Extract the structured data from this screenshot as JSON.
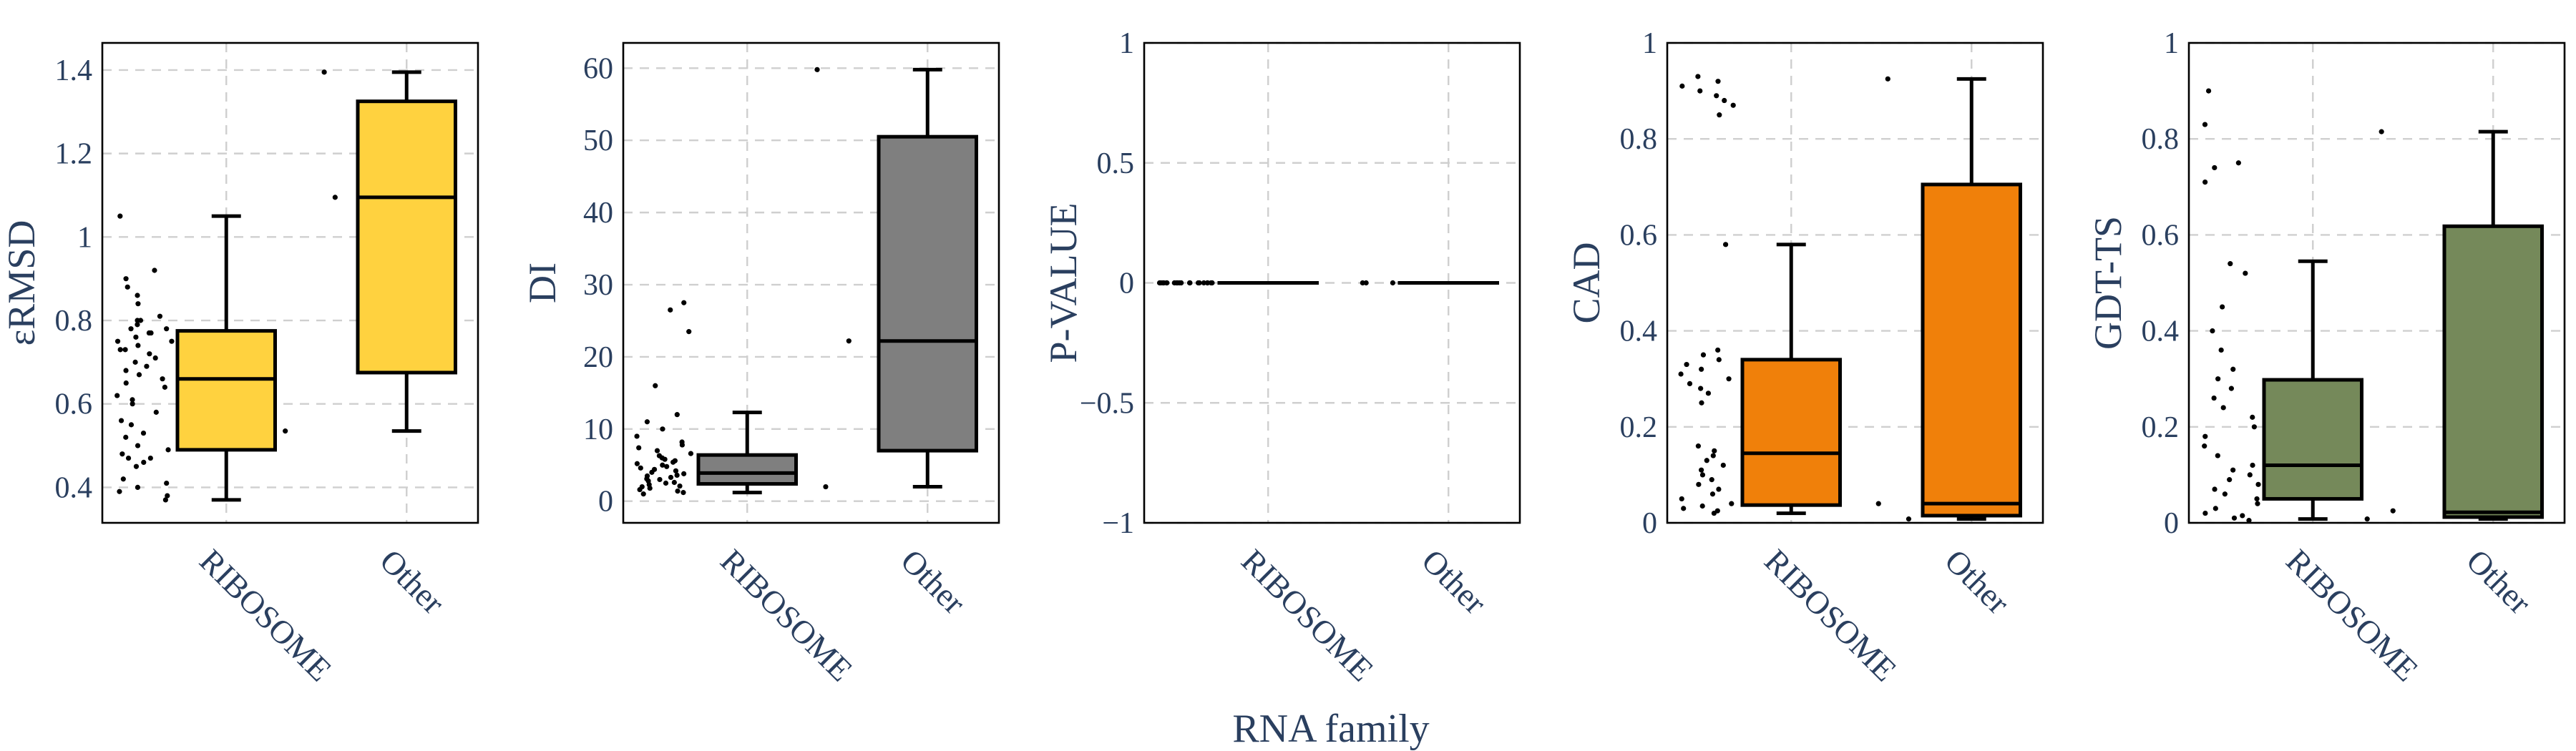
{
  "x_title": "RNA family",
  "chart_data": [
    {
      "type": "box",
      "ylabel": "εRMSD",
      "categories": [
        "RIBOSOME",
        "Other"
      ],
      "ylim": [
        0.315,
        1.465
      ],
      "yticks": [
        0.4,
        0.6,
        0.8,
        1,
        1.2,
        1.4
      ],
      "tick_labels": [
        "0.4",
        "0.6",
        "0.8",
        "1",
        "1.2",
        "1.4"
      ],
      "color": "#ffd23f",
      "grid": true,
      "boxes": [
        {
          "category": "RIBOSOME",
          "min": 0.37,
          "q1": 0.49,
          "median": 0.66,
          "q3": 0.775,
          "max": 1.05
        },
        {
          "category": "Other",
          "min": 0.535,
          "q1": 0.675,
          "median": 1.095,
          "q3": 1.325,
          "max": 1.395
        }
      ],
      "points": [
        [
          0.37,
          0.38,
          0.39,
          0.4,
          0.41,
          0.42,
          0.45,
          0.46,
          0.47,
          0.47,
          0.48,
          0.49,
          0.5,
          0.52,
          0.53,
          0.55,
          0.56,
          0.58,
          0.6,
          0.61,
          0.62,
          0.64,
          0.65,
          0.66,
          0.67,
          0.68,
          0.69,
          0.7,
          0.71,
          0.72,
          0.73,
          0.73,
          0.74,
          0.75,
          0.75,
          0.76,
          0.77,
          0.77,
          0.78,
          0.78,
          0.79,
          0.8,
          0.8,
          0.81,
          0.84,
          0.86,
          0.88,
          0.9,
          0.92,
          1.05
        ],
        [
          0.535,
          1.095,
          1.395
        ]
      ]
    },
    {
      "type": "box",
      "ylabel": "DI",
      "categories": [
        "RIBOSOME",
        "Other"
      ],
      "ylim": [
        -3,
        63.5
      ],
      "yticks": [
        0,
        10,
        20,
        30,
        40,
        50,
        60
      ],
      "tick_labels": [
        "0",
        "10",
        "20",
        "30",
        "40",
        "50",
        "60"
      ],
      "color": "#7f7f7f",
      "grid": true,
      "boxes": [
        {
          "category": "RIBOSOME",
          "min": 1.2,
          "q1": 2.4,
          "median": 3.9,
          "q3": 6.4,
          "max": 12.3
        },
        {
          "category": "Other",
          "min": 2.0,
          "q1": 7.0,
          "median": 22.2,
          "q3": 50.5,
          "max": 59.8
        }
      ],
      "points": [
        [
          1.0,
          1.2,
          1.4,
          1.6,
          1.8,
          2.0,
          2.1,
          2.3,
          2.5,
          2.6,
          2.8,
          3.0,
          3.1,
          3.3,
          3.5,
          3.6,
          3.8,
          4.0,
          4.2,
          4.4,
          4.6,
          4.8,
          5.0,
          5.2,
          5.4,
          5.6,
          5.8,
          6.0,
          6.3,
          6.6,
          7.0,
          7.4,
          7.8,
          8.2,
          9.0,
          10.0,
          11.0,
          12.0,
          16.0,
          23.5,
          26.5,
          27.5
        ],
        [
          2.0,
          22.2,
          59.8
        ]
      ]
    },
    {
      "type": "box",
      "ylabel": "P-VALUE",
      "categories": [
        "RIBOSOME",
        "Other"
      ],
      "ylim": [
        -1,
        1
      ],
      "yticks": [
        -1,
        -0.5,
        0,
        0.5,
        1
      ],
      "tick_labels": [
        "−1",
        "−0.5",
        "0",
        "0.5",
        "1"
      ],
      "color": "#1f77b4",
      "grid": true,
      "boxes": [
        {
          "category": "RIBOSOME",
          "min": 0,
          "q1": 0,
          "median": 0,
          "q3": 0,
          "max": 0
        },
        {
          "category": "Other",
          "min": 0,
          "q1": 0,
          "median": 0,
          "q3": 0,
          "max": 0
        }
      ],
      "points": [
        [
          0,
          0,
          0,
          0,
          0,
          0,
          0,
          0,
          0,
          0,
          0,
          0,
          0,
          0,
          0,
          0,
          0,
          0,
          0,
          0
        ],
        [
          0,
          0,
          0
        ]
      ]
    },
    {
      "type": "box",
      "ylabel": "CAD",
      "categories": [
        "RIBOSOME",
        "Other"
      ],
      "ylim": [
        0,
        1
      ],
      "yticks": [
        0,
        0.2,
        0.4,
        0.6,
        0.8,
        1
      ],
      "tick_labels": [
        "0",
        "0.2",
        "0.4",
        "0.6",
        "0.8",
        "1"
      ],
      "color": "#f0800a",
      "grid": true,
      "boxes": [
        {
          "category": "RIBOSOME",
          "min": 0.02,
          "q1": 0.037,
          "median": 0.145,
          "q3": 0.34,
          "max": 0.58
        },
        {
          "category": "Other",
          "min": 0.008,
          "q1": 0.015,
          "median": 0.04,
          "q3": 0.705,
          "max": 0.925
        }
      ],
      "points": [
        [
          0.02,
          0.025,
          0.03,
          0.035,
          0.04,
          0.05,
          0.06,
          0.07,
          0.08,
          0.09,
          0.1,
          0.11,
          0.12,
          0.13,
          0.14,
          0.15,
          0.16,
          0.25,
          0.27,
          0.28,
          0.29,
          0.3,
          0.31,
          0.32,
          0.33,
          0.34,
          0.35,
          0.36,
          0.58,
          0.85,
          0.87,
          0.88,
          0.89,
          0.9,
          0.91,
          0.92,
          0.93
        ],
        [
          0.008,
          0.04,
          0.925
        ]
      ]
    },
    {
      "type": "box",
      "ylabel": "GDT-TS",
      "categories": [
        "RIBOSOME",
        "Other"
      ],
      "ylim": [
        0,
        1
      ],
      "yticks": [
        0,
        0.2,
        0.4,
        0.6,
        0.8,
        1
      ],
      "tick_labels": [
        "0",
        "0.2",
        "0.4",
        "0.6",
        "0.8",
        "1"
      ],
      "color": "#75895a",
      "grid": true,
      "boxes": [
        {
          "category": "RIBOSOME",
          "min": 0.008,
          "q1": 0.05,
          "median": 0.12,
          "q3": 0.298,
          "max": 0.545
        },
        {
          "category": "Other",
          "min": 0.008,
          "q1": 0.012,
          "median": 0.022,
          "q3": 0.618,
          "max": 0.815
        }
      ],
      "points": [
        [
          0.005,
          0.01,
          0.015,
          0.02,
          0.03,
          0.04,
          0.05,
          0.06,
          0.07,
          0.08,
          0.09,
          0.1,
          0.11,
          0.12,
          0.14,
          0.16,
          0.18,
          0.2,
          0.22,
          0.24,
          0.26,
          0.28,
          0.3,
          0.32,
          0.36,
          0.4,
          0.45,
          0.52,
          0.54,
          0.71,
          0.74,
          0.75,
          0.83,
          0.9
        ],
        [
          0.008,
          0.025,
          0.815
        ]
      ]
    }
  ]
}
